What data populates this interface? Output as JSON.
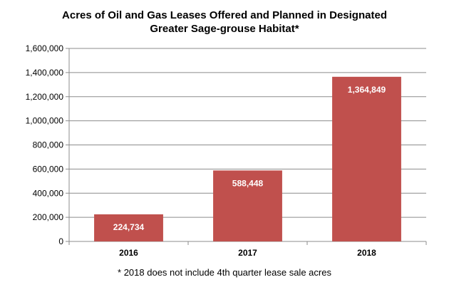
{
  "chart_data": {
    "type": "bar",
    "title_line1": "Acres of Oil and Gas Leases Offered and Planned in Designated",
    "title_line2": "Greater Sage-grouse Habitat*",
    "categories": [
      "2016",
      "2017",
      "2018"
    ],
    "values": [
      224734,
      588448,
      1364849
    ],
    "data_labels": [
      "224,734",
      "588,448",
      "1,364,849"
    ],
    "y_ticks": [
      0,
      200000,
      400000,
      600000,
      800000,
      1000000,
      1200000,
      1400000,
      1600000
    ],
    "y_tick_labels": [
      "0",
      "200,000",
      "400,000",
      "600,000",
      "800,000",
      "1,000,000",
      "1,200,000",
      "1,400,000",
      "1,600,000"
    ],
    "ylim": [
      0,
      1600000
    ],
    "grid": true,
    "legend": "none",
    "bar_color": "#c0504d",
    "footnote": "* 2018 does not include 4th quarter lease sale acres"
  }
}
